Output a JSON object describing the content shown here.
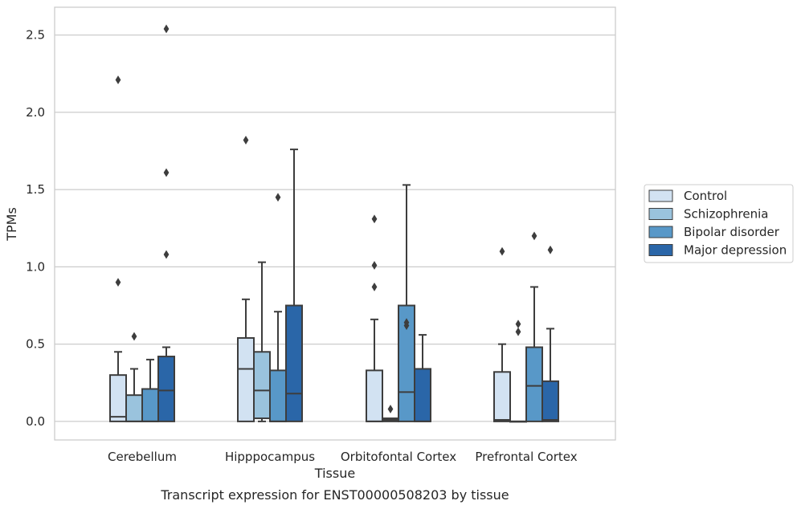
{
  "caption": "Transcript expression for ENST00000508203 by tissue",
  "chart_data": {
    "type": "box",
    "xlabel": "Tissue",
    "ylabel": "TPMs",
    "ylim": [
      -0.12,
      2.68
    ],
    "yticks": [
      0.0,
      0.5,
      1.0,
      1.5,
      2.0,
      2.5
    ],
    "ytick_labels": [
      "0.0",
      "0.5",
      "1.0",
      "1.5",
      "2.0",
      "2.5"
    ],
    "grid": "horizontal",
    "legend_position": "right",
    "categories": [
      "Cerebellum",
      "Hipppocampus",
      "Orbitofontal Cortex",
      "Prefrontal Cortex"
    ],
    "series": [
      {
        "name": "Control",
        "color": "#d2e2f2",
        "boxes": [
          {
            "whisker_low": 0.0,
            "q1": 0.0,
            "median": 0.03,
            "q3": 0.3,
            "whisker_high": 0.45,
            "outliers": [
              0.9,
              2.21
            ]
          },
          {
            "whisker_low": 0.0,
            "q1": 0.0,
            "median": 0.34,
            "q3": 0.54,
            "whisker_high": 0.79,
            "outliers": [
              1.82
            ]
          },
          {
            "whisker_low": 0.0,
            "q1": 0.0,
            "median": 0.0,
            "q3": 0.33,
            "whisker_high": 0.66,
            "outliers": [
              0.87,
              1.01,
              1.31
            ]
          },
          {
            "whisker_low": 0.0,
            "q1": 0.0,
            "median": 0.01,
            "q3": 0.32,
            "whisker_high": 0.5,
            "outliers": [
              1.1
            ]
          }
        ]
      },
      {
        "name": "Schizophrenia",
        "color": "#9ac3dd",
        "boxes": [
          {
            "whisker_low": 0.0,
            "q1": 0.0,
            "median": 0.0,
            "q3": 0.17,
            "whisker_high": 0.34,
            "outliers": [
              0.55
            ]
          },
          {
            "whisker_low": 0.0,
            "q1": 0.02,
            "median": 0.2,
            "q3": 0.45,
            "whisker_high": 1.03,
            "outliers": []
          },
          {
            "whisker_low": 0.0,
            "q1": 0.0,
            "median": 0.01,
            "q3": 0.02,
            "whisker_high": 0.02,
            "outliers": [
              0.08
            ]
          },
          {
            "whisker_low": 0.0,
            "q1": 0.0,
            "median": 0.0,
            "q3": 0.0,
            "whisker_high": 0.0,
            "outliers": [
              0.58,
              0.63
            ]
          }
        ]
      },
      {
        "name": "Bipolar disorder",
        "color": "#5898c8",
        "boxes": [
          {
            "whisker_low": 0.0,
            "q1": 0.0,
            "median": 0.0,
            "q3": 0.21,
            "whisker_high": 0.4,
            "outliers": []
          },
          {
            "whisker_low": 0.0,
            "q1": 0.0,
            "median": 0.0,
            "q3": 0.33,
            "whisker_high": 0.71,
            "outliers": [
              1.45
            ]
          },
          {
            "whisker_low": 0.0,
            "q1": 0.0,
            "median": 0.19,
            "q3": 0.75,
            "whisker_high": 1.53,
            "outliers": [
              0.62,
              0.64
            ]
          },
          {
            "whisker_low": 0.0,
            "q1": 0.0,
            "median": 0.23,
            "q3": 0.48,
            "whisker_high": 0.87,
            "outliers": [
              1.2
            ]
          }
        ]
      },
      {
        "name": "Major depression",
        "color": "#2a66a8",
        "boxes": [
          {
            "whisker_low": 0.0,
            "q1": 0.0,
            "median": 0.2,
            "q3": 0.42,
            "whisker_high": 0.48,
            "outliers": [
              1.08,
              1.61,
              2.54
            ]
          },
          {
            "whisker_low": 0.0,
            "q1": 0.0,
            "median": 0.18,
            "q3": 0.75,
            "whisker_high": 1.76,
            "outliers": []
          },
          {
            "whisker_low": 0.0,
            "q1": 0.0,
            "median": 0.0,
            "q3": 0.34,
            "whisker_high": 0.56,
            "outliers": []
          },
          {
            "whisker_low": 0.0,
            "q1": 0.0,
            "median": 0.01,
            "q3": 0.26,
            "whisker_high": 0.6,
            "outliers": [
              1.11
            ]
          }
        ]
      }
    ]
  }
}
